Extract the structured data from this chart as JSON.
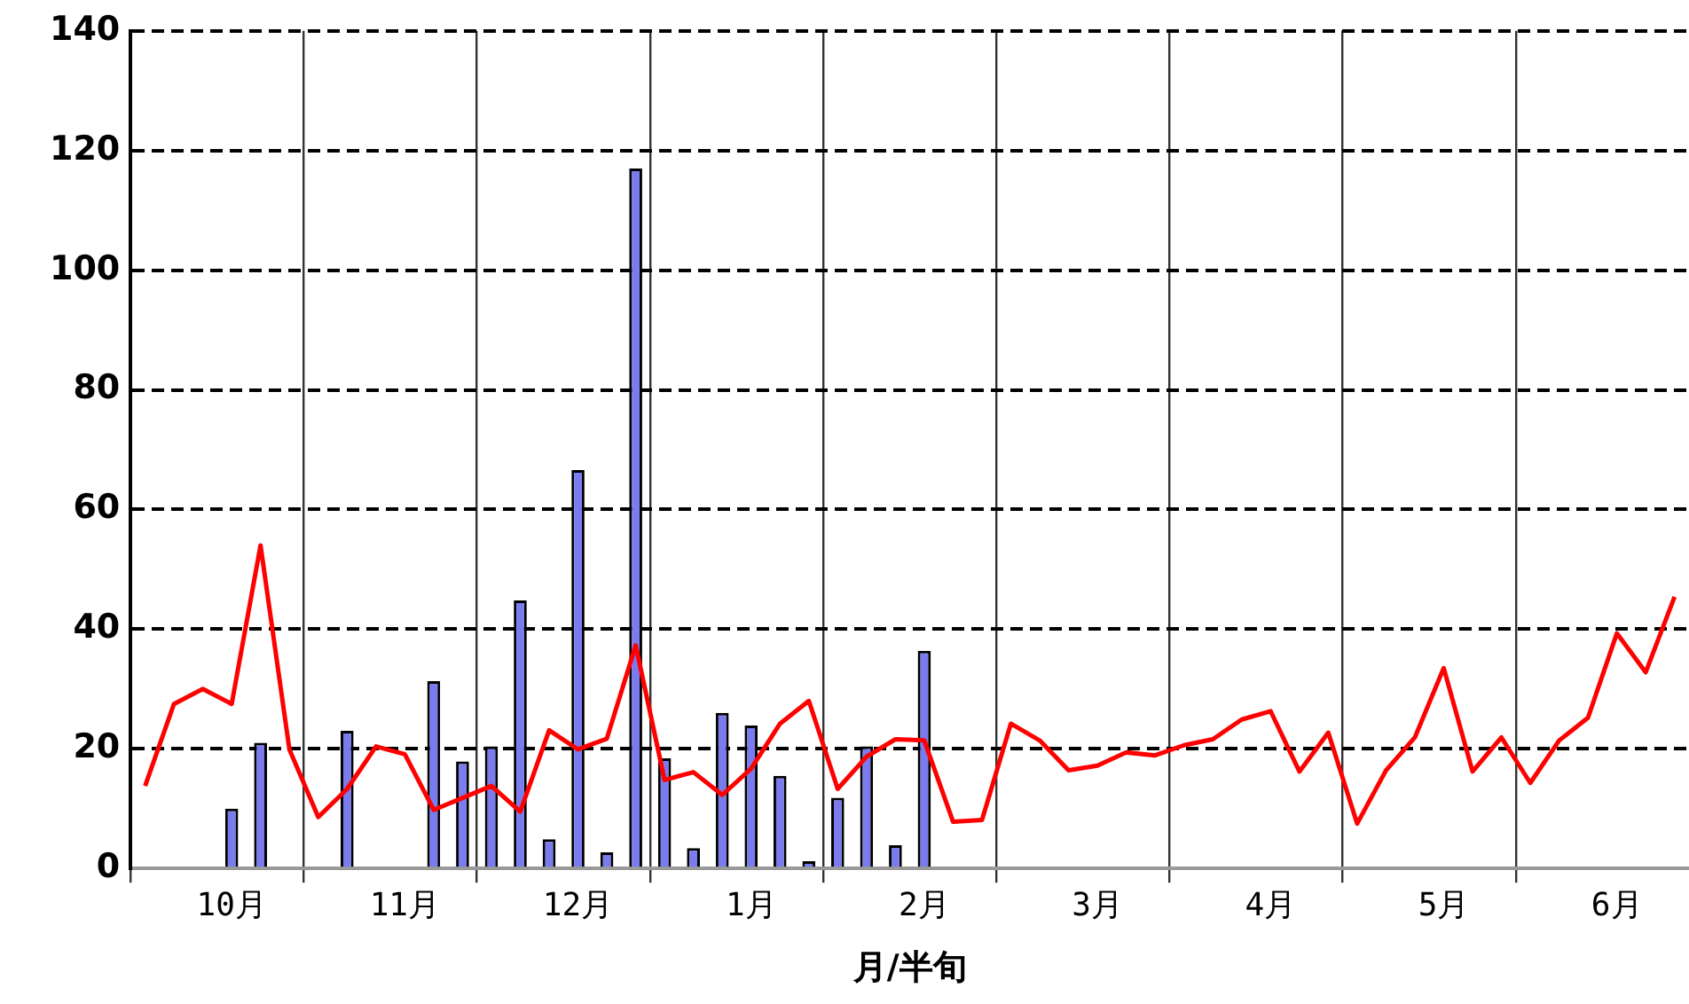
{
  "chart_data": {
    "type": "bar",
    "xlabel": "月/半旬",
    "categories": [
      null,
      null,
      null,
      "10月",
      null,
      null,
      null,
      null,
      null,
      "11月",
      null,
      null,
      null,
      null,
      null,
      "12月",
      null,
      null,
      null,
      null,
      null,
      "1月",
      null,
      null,
      null,
      null,
      null,
      "2月",
      null,
      null,
      null,
      null,
      null,
      "3月",
      null,
      null,
      null,
      null,
      null,
      "4月",
      null,
      null,
      null,
      null,
      null,
      "5月",
      null,
      null,
      null,
      null,
      null,
      "6月",
      null,
      null
    ],
    "series": [
      {
        "color": "#7b7bf0",
        "values": [
          null,
          null,
          null,
          10,
          21,
          null,
          null,
          23,
          null,
          null,
          31.3,
          17.9,
          20.4,
          44.8,
          4.9,
          66.6,
          2.7,
          117,
          18.4,
          3.4,
          26,
          23.9,
          15.5,
          1.2,
          11.8,
          20.4,
          3.9,
          36.4,
          null,
          null,
          null,
          null,
          null,
          null,
          null,
          null,
          null,
          null,
          null,
          null,
          null,
          null,
          null,
          null,
          null,
          null,
          null,
          null,
          null,
          null,
          null,
          null,
          null,
          null
        ]
      },
      {
        "type": "line",
        "color": "#ff0000",
        "values": [
          13.8,
          27.5,
          30,
          27.5,
          54,
          19.9,
          8.6,
          13.3,
          20.4,
          19.1,
          9.8,
          11.8,
          13.8,
          9.5,
          23.1,
          19.9,
          21.7,
          37.3,
          14.8,
          16.1,
          12.3,
          16.7,
          24.2,
          28,
          13.3,
          18.7,
          21.6,
          21.4,
          7.8,
          8.1,
          24.2,
          21.4,
          16.4,
          17.2,
          19.4,
          18.9,
          20.6,
          21.6,
          24.9,
          26.3,
          16.2,
          22.7,
          7.5,
          16.4,
          21.9,
          33.5,
          16.2,
          21.9,
          14.3,
          21.4,
          25.2,
          39.3,
          32.8,
          45.4
        ]
      }
    ],
    "ylim": [
      0,
      140
    ],
    "yticks": [
      0,
      20,
      40,
      60,
      80,
      100,
      120,
      140
    ],
    "grid": true,
    "legend": false,
    "marker": "none",
    "line_style": "solid"
  }
}
